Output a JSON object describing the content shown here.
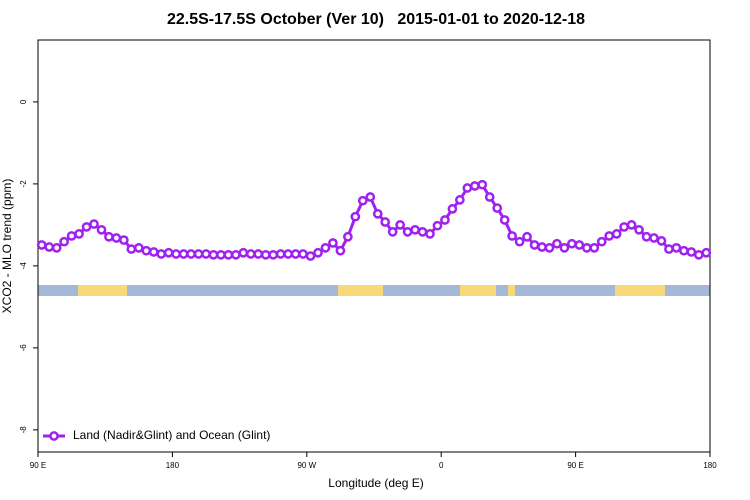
{
  "chart_data": {
    "type": "line",
    "title": "22.5S-17.5S October (Ver 10)   2015-01-01 to 2020-12-18",
    "xlabel": "Longitude (deg E)",
    "ylabel": "XCO2 - MLO trend (ppm)",
    "xlim": [
      90,
      540
    ],
    "xticks": [
      {
        "value": 90,
        "label": "90 E"
      },
      {
        "value": 180,
        "label": "180"
      },
      {
        "value": 270,
        "label": "90 W"
      },
      {
        "value": 360,
        "label": "0"
      },
      {
        "value": 450,
        "label": "90 E"
      },
      {
        "value": 540,
        "label": "180"
      }
    ],
    "ylim": [
      -8.54,
      1.51
    ],
    "yticks": [
      0,
      -2,
      -4,
      -6,
      -8
    ],
    "legend": "bottom-left",
    "x": [
      92.5,
      97.5,
      102.5,
      107.5,
      112.5,
      117.5,
      122.5,
      127.5,
      132.5,
      137.5,
      142.5,
      147.5,
      152.5,
      157.5,
      162.5,
      167.5,
      172.5,
      177.5,
      182.5,
      187.5,
      192.5,
      197.5,
      202.5,
      207.5,
      212.5,
      217.5,
      222.5,
      227.5,
      232.5,
      237.5,
      242.5,
      247.5,
      252.5,
      257.5,
      262.5,
      267.5,
      272.5,
      277.5,
      282.5,
      287.5,
      292.5,
      297.5,
      302.5,
      307.5,
      312.5,
      317.5,
      322.5,
      327.5,
      332.5,
      337.5,
      342.5,
      347.5,
      352.5,
      357.5,
      362.5,
      367.5,
      372.5,
      377.5,
      382.5,
      387.5,
      392.5,
      397.5,
      402.5,
      407.5,
      412.5,
      417.5,
      422.5,
      427.5,
      432.5,
      437.5,
      442.5,
      447.5,
      452.5,
      457.5,
      462.5,
      467.5,
      472.5,
      477.5,
      482.5,
      487.5,
      492.5,
      497.5,
      502.5,
      507.5,
      512.5,
      517.5,
      522.5,
      527.5,
      532.5,
      537.5
    ],
    "series": [
      {
        "name": "Land (Nadir&Glint) and Ocean (Glint)",
        "color": "#a020f0",
        "values": [
          -3.49,
          -3.54,
          -3.56,
          -3.41,
          -3.27,
          -3.22,
          -3.05,
          -2.98,
          -3.12,
          -3.29,
          -3.32,
          -3.37,
          -3.59,
          -3.56,
          -3.63,
          -3.66,
          -3.71,
          -3.68,
          -3.71,
          -3.71,
          -3.71,
          -3.71,
          -3.71,
          -3.73,
          -3.73,
          -3.73,
          -3.73,
          -3.68,
          -3.71,
          -3.71,
          -3.73,
          -3.73,
          -3.71,
          -3.71,
          -3.71,
          -3.71,
          -3.76,
          -3.68,
          -3.56,
          -3.44,
          -3.63,
          -3.29,
          -2.8,
          -2.41,
          -2.32,
          -2.73,
          -2.93,
          -3.17,
          -3.0,
          -3.17,
          -3.12,
          -3.17,
          -3.22,
          -3.02,
          -2.88,
          -2.61,
          -2.39,
          -2.1,
          -2.05,
          -2.02,
          -2.32,
          -2.59,
          -2.88,
          -3.27,
          -3.41,
          -3.29,
          -3.49,
          -3.54,
          -3.56,
          -3.46,
          -3.56,
          -3.46,
          -3.49,
          -3.56,
          -3.56,
          -3.41,
          -3.27,
          -3.22,
          -3.05,
          -3.0,
          -3.12,
          -3.29,
          -3.32,
          -3.39,
          -3.59,
          -3.56,
          -3.63,
          -3.66,
          -3.73,
          -3.68
        ]
      }
    ]
  }
}
